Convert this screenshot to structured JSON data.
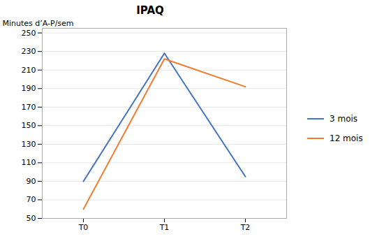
{
  "chart_data": {
    "type": "line",
    "title": "IPAQ",
    "ylabel": "Minutes d’A-P/sem",
    "categories": [
      "T0",
      "T1",
      "T2"
    ],
    "series": [
      {
        "name": "3 mois",
        "color": "#4472C4",
        "values": [
          90,
          228,
          95
        ]
      },
      {
        "name": "12 mois",
        "color": "#ED7D31",
        "values": [
          60,
          222,
          192
        ]
      }
    ],
    "ylim": [
      50,
      255
    ],
    "yticks": [
      50,
      70,
      90,
      110,
      130,
      150,
      170,
      190,
      210,
      230,
      250
    ],
    "grid": true,
    "legend": "right"
  }
}
